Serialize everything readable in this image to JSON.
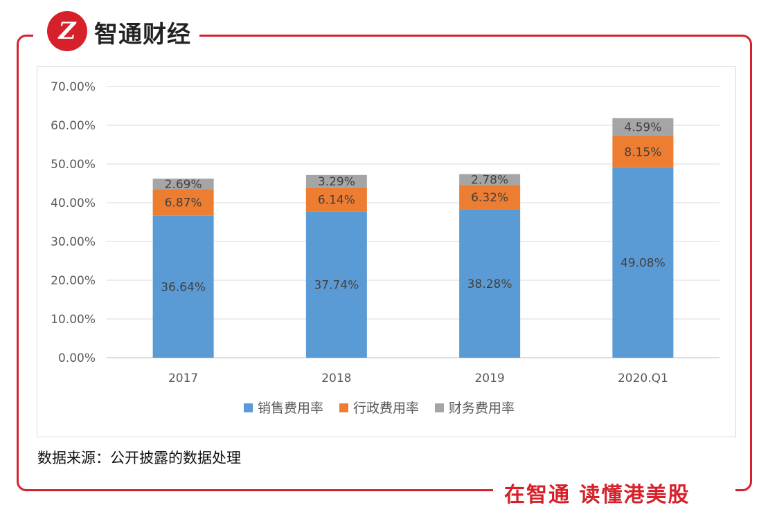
{
  "brand": {
    "logo_glyph": "Z",
    "name": "智通财经",
    "slogan": "在智通  读懂港美股"
  },
  "source_note": "数据来源：公开披露的数据处理",
  "colors": {
    "frame": "#d7212a",
    "sales": "#5b9bd5",
    "admin": "#ed7d31",
    "finance": "#a5a5a5"
  },
  "chart_data": {
    "type": "bar",
    "stacked": true,
    "categories": [
      "2017",
      "2018",
      "2019",
      "2020.Q1"
    ],
    "series": [
      {
        "name": "销售费用率",
        "values": [
          36.64,
          37.74,
          38.28,
          49.08
        ],
        "labels": [
          "36.64%",
          "37.74%",
          "38.28%",
          "49.08%"
        ]
      },
      {
        "name": "行政费用率",
        "values": [
          6.87,
          6.14,
          6.32,
          8.15
        ],
        "labels": [
          "6.87%",
          "6.14%",
          "6.32%",
          "8.15%"
        ]
      },
      {
        "name": "财务费用率",
        "values": [
          2.69,
          3.29,
          2.78,
          4.59
        ],
        "labels": [
          "2.69%",
          "3.29%",
          "2.78%",
          "4.59%"
        ]
      }
    ],
    "yticks": [
      "0.00%",
      "10.00%",
      "20.00%",
      "30.00%",
      "40.00%",
      "50.00%",
      "60.00%",
      "70.00%"
    ],
    "ylim": [
      0,
      70
    ],
    "grid": true,
    "legend_position": "bottom"
  }
}
